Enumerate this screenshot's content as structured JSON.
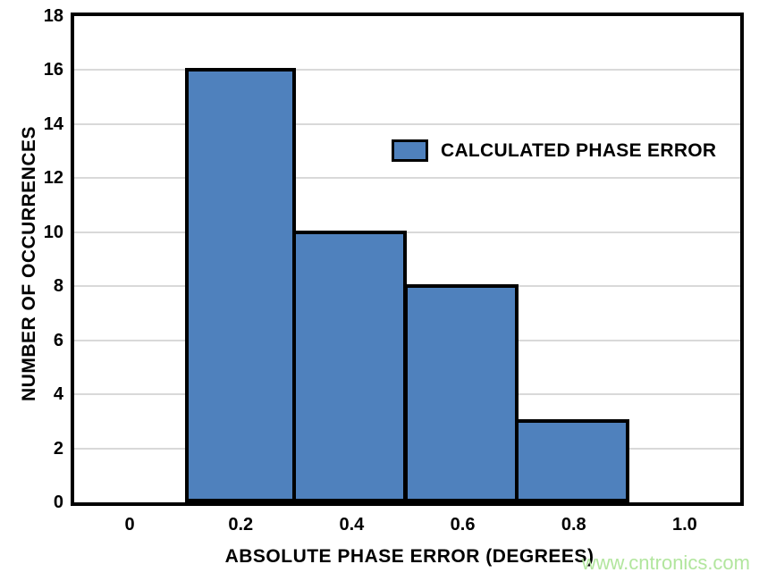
{
  "chart_data": {
    "type": "bar",
    "subtype": "histogram",
    "title": "",
    "xlabel": "ABSOLUTE PHASE ERROR (DEGREES)",
    "ylabel": "NUMBER OF OCCURRENCES",
    "categories": [
      "0",
      "0.2",
      "0.4",
      "0.6",
      "0.8",
      "1.0"
    ],
    "values": [
      0,
      16,
      10,
      8,
      3,
      0
    ],
    "bins": [
      {
        "range": [
          0.1,
          0.3
        ],
        "center": 0.2,
        "count": 16
      },
      {
        "range": [
          0.3,
          0.5
        ],
        "center": 0.4,
        "count": 10
      },
      {
        "range": [
          0.5,
          0.7
        ],
        "center": 0.6,
        "count": 8
      },
      {
        "range": [
          0.7,
          0.9
        ],
        "center": 0.8,
        "count": 3
      }
    ],
    "xlim": [
      -0.1,
      1.1
    ],
    "ylim": [
      0,
      18
    ],
    "yticks": [
      0,
      2,
      4,
      6,
      8,
      10,
      12,
      14,
      16,
      18
    ],
    "grid": "horizontal",
    "legend": {
      "label": "CALCULATED PHASE ERROR",
      "position": "inside-upper-center-right"
    },
    "colors": {
      "bar_fill": "#4f81bd",
      "bar_border": "#000000",
      "gridline": "#d9d9d9",
      "axis": "#000000",
      "text": "#000000"
    }
  },
  "watermark": {
    "text": "www.cntronics.com",
    "color": "#b2e69e"
  }
}
